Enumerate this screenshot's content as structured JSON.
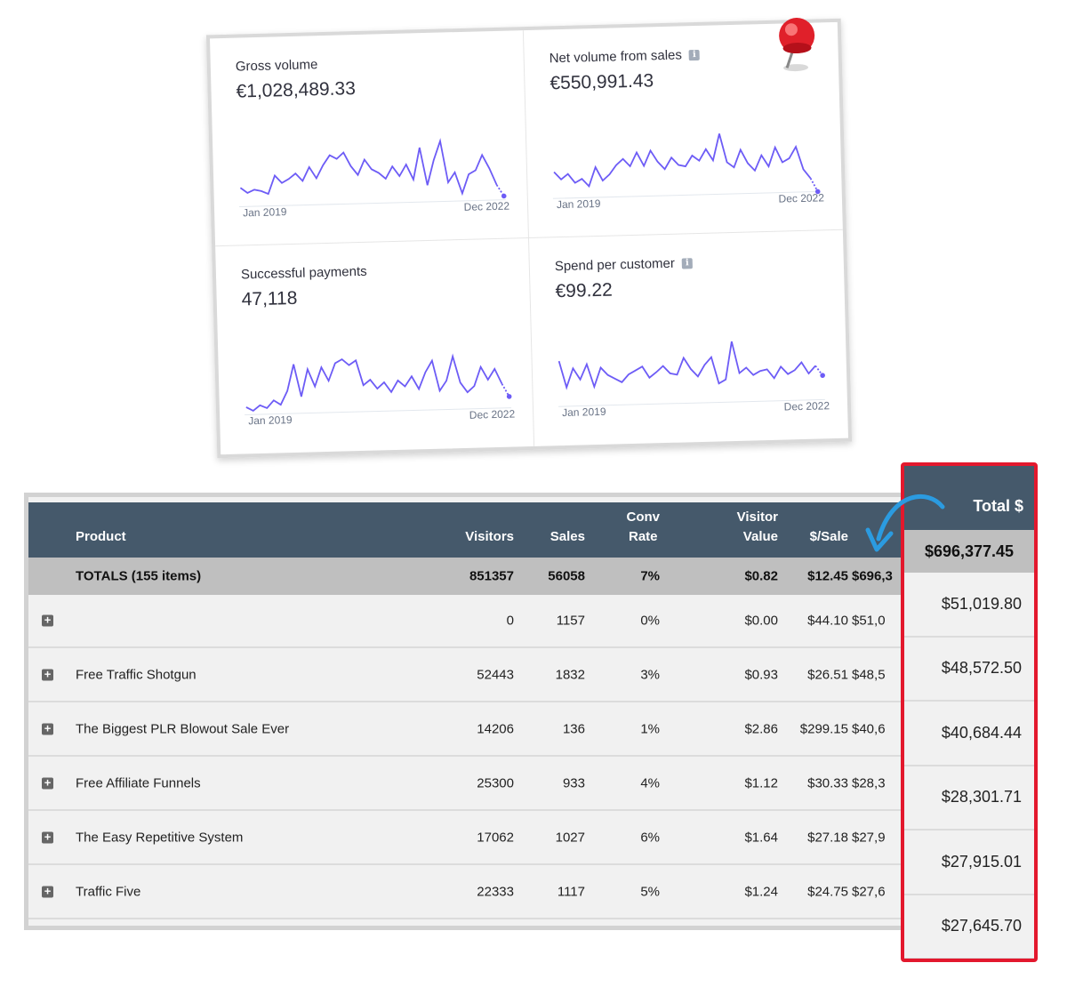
{
  "dashboard": {
    "panels": [
      {
        "title": "Gross volume",
        "value": "€1,028,489.33",
        "info": false,
        "start": "Jan 2019",
        "end": "Dec 2022",
        "series": [
          55,
          62,
          58,
          60,
          64,
          40,
          50,
          45,
          38,
          48,
          30,
          45,
          28,
          15,
          20,
          12,
          30,
          42,
          22,
          35,
          40,
          48,
          32,
          45,
          30,
          50,
          8,
          58,
          25,
          0,
          55,
          42,
          70,
          45,
          40,
          20,
          38,
          60,
          75
        ]
      },
      {
        "title": "Net volume from sales",
        "value": "€550,991.43",
        "info": true,
        "start": "Jan 2019",
        "end": "Dec 2022",
        "series": [
          45,
          55,
          48,
          60,
          55,
          65,
          40,
          58,
          50,
          38,
          30,
          40,
          22,
          40,
          20,
          35,
          45,
          30,
          40,
          42,
          28,
          35,
          20,
          35,
          0,
          38,
          45,
          22,
          40,
          50,
          30,
          45,
          20,
          40,
          35,
          20,
          50,
          62,
          80
        ]
      },
      {
        "title": "Successful payments",
        "value": "47,118",
        "info": false,
        "start": "Jan 2019",
        "end": "Dec 2022",
        "series": [
          70,
          75,
          68,
          72,
          62,
          68,
          50,
          15,
          58,
          22,
          45,
          20,
          38,
          15,
          10,
          18,
          12,
          45,
          38,
          50,
          42,
          55,
          40,
          48,
          35,
          52,
          30,
          15,
          55,
          42,
          10,
          45,
          58,
          50,
          25,
          42,
          28,
          48,
          65
        ]
      },
      {
        "title": "Spend per customer",
        "value": "€99.22",
        "info": true,
        "start": "Jan 2019",
        "end": "Dec 2022",
        "series": [
          20,
          55,
          30,
          45,
          25,
          55,
          30,
          40,
          45,
          50,
          40,
          35,
          30,
          45,
          38,
          30,
          40,
          42,
          20,
          35,
          45,
          30,
          20,
          55,
          50,
          0,
          42,
          35,
          45,
          40,
          38,
          50,
          35,
          45,
          40,
          30,
          45,
          35,
          48
        ]
      }
    ]
  },
  "table": {
    "headers": {
      "product": "Product",
      "visitors": "Visitors",
      "sales": "Sales",
      "conv_line1": "Conv",
      "conv_line2": "Rate",
      "vv_line1": "Visitor",
      "vv_line2": "Value",
      "per_sale": "$/Sale"
    },
    "totals": {
      "label": "TOTALS (155 items)",
      "visitors": "851357",
      "sales": "56058",
      "conv": "7%",
      "vv": "$0.82",
      "per_sale": "$12.45",
      "total": "$696,3"
    },
    "rows": [
      {
        "product": "",
        "visitors": "0",
        "sales": "1157",
        "conv": "0%",
        "vv": "$0.00",
        "per_sale": "$44.10",
        "total": "$51,0"
      },
      {
        "product": "Free Traffic Shotgun",
        "visitors": "52443",
        "sales": "1832",
        "conv": "3%",
        "vv": "$0.93",
        "per_sale": "$26.51",
        "total": "$48,5"
      },
      {
        "product": "The Biggest PLR Blowout Sale Ever",
        "visitors": "14206",
        "sales": "136",
        "conv": "1%",
        "vv": "$2.86",
        "per_sale": "$299.15",
        "total": "$40,6"
      },
      {
        "product": "Free Affiliate Funnels",
        "visitors": "25300",
        "sales": "933",
        "conv": "4%",
        "vv": "$1.12",
        "per_sale": "$30.33",
        "total": "$28,3"
      },
      {
        "product": "The Easy Repetitive System",
        "visitors": "17062",
        "sales": "1027",
        "conv": "6%",
        "vv": "$1.64",
        "per_sale": "$27.18",
        "total": "$27,9"
      },
      {
        "product": "Traffic Five",
        "visitors": "22333",
        "sales": "1117",
        "conv": "5%",
        "vv": "$1.24",
        "per_sale": "$24.75",
        "total": "$27,6"
      }
    ]
  },
  "highlight": {
    "header": "Total $",
    "total": "$696,377.45",
    "values": [
      "$51,019.80",
      "$48,572.50",
      "$40,684.44",
      "$28,301.71",
      "$27,915.01",
      "$27,645.70"
    ]
  },
  "colors": {
    "accent_line": "#6d5cf6",
    "header_bg": "#45596b",
    "highlight_border": "#e3182d",
    "arrow": "#2b9be0",
    "pin": "#e0202a"
  },
  "icons": {
    "pin": "pushpin-icon",
    "info": "info-icon",
    "expand": "plus-square-icon",
    "arrow": "curved-arrow-icon"
  }
}
